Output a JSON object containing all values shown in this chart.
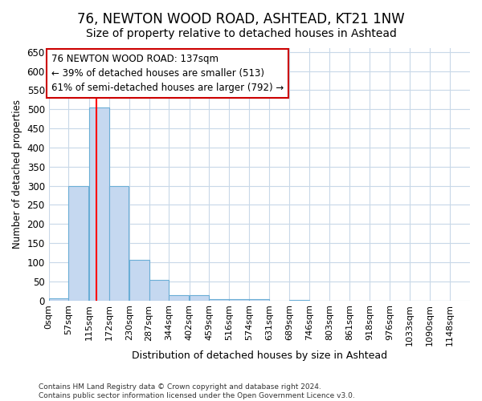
{
  "title": "76, NEWTON WOOD ROAD, ASHTEAD, KT21 1NW",
  "subtitle": "Size of property relative to detached houses in Ashtead",
  "xlabel": "Distribution of detached houses by size in Ashtead",
  "ylabel": "Number of detached properties",
  "bin_edges": [
    0,
    57,
    115,
    172,
    230,
    287,
    344,
    402,
    459,
    516,
    574,
    631,
    689,
    746,
    803,
    861,
    918,
    976,
    1033,
    1090,
    1148
  ],
  "bar_heights": [
    5,
    300,
    505,
    300,
    107,
    53,
    13,
    13,
    3,
    3,
    3,
    0,
    1,
    0,
    0,
    0,
    0,
    0,
    0,
    0
  ],
  "bar_color": "#c5d8f0",
  "bar_edge_color": "#6baed6",
  "red_line_x": 137,
  "ylim": [
    0,
    660
  ],
  "yticks": [
    0,
    50,
    100,
    150,
    200,
    250,
    300,
    350,
    400,
    450,
    500,
    550,
    600,
    650
  ],
  "annotation_line1": "76 NEWTON WOOD ROAD: 137sqm",
  "annotation_line2": "← 39% of detached houses are smaller (513)",
  "annotation_line3": "61% of semi-detached houses are larger (792) →",
  "annotation_box_color": "#ffffff",
  "annotation_box_edge_color": "#cc0000",
  "footer_text": "Contains HM Land Registry data © Crown copyright and database right 2024.\nContains public sector information licensed under the Open Government Licence v3.0.",
  "background_color": "#ffffff",
  "plot_background_color": "#ffffff",
  "grid_color": "#c8d8e8",
  "title_fontsize": 12,
  "subtitle_fontsize": 10,
  "tick_label_fontsize": 8
}
